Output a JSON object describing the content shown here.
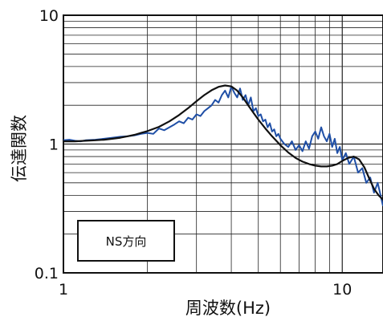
{
  "chart_data": {
    "type": "line",
    "xlabel": "周波数(Hz)",
    "ylabel": "伝達関数",
    "x_scale": "log",
    "y_scale": "log",
    "xlim": [
      1,
      14
    ],
    "ylim": [
      0.1,
      10
    ],
    "grid": true,
    "x_ticks": [
      {
        "value": 1,
        "label": "1"
      },
      {
        "value": 10,
        "label": "10"
      }
    ],
    "y_ticks": [
      {
        "value": 0.1,
        "label": "0.1"
      },
      {
        "value": 1,
        "label": "1"
      },
      {
        "value": 10,
        "label": "10"
      }
    ],
    "legend": {
      "text": "NS方向",
      "placement": "bottom-left"
    },
    "series": [
      {
        "color": "#1f4fa6",
        "x": [
          1.0,
          1.05,
          1.1,
          1.15,
          1.2,
          1.3,
          1.4,
          1.5,
          1.6,
          1.7,
          1.8,
          1.9,
          2.0,
          2.1,
          2.2,
          2.3,
          2.4,
          2.5,
          2.6,
          2.7,
          2.8,
          2.9,
          3.0,
          3.1,
          3.2,
          3.3,
          3.4,
          3.5,
          3.6,
          3.7,
          3.8,
          3.9,
          4.0,
          4.1,
          4.2,
          4.3,
          4.4,
          4.5,
          4.6,
          4.7,
          4.8,
          4.9,
          5.0,
          5.1,
          5.2,
          5.3,
          5.4,
          5.5,
          5.6,
          5.7,
          5.8,
          5.9,
          6.0,
          6.2,
          6.4,
          6.6,
          6.8,
          7.0,
          7.2,
          7.4,
          7.6,
          7.8,
          8.0,
          8.2,
          8.4,
          8.6,
          8.8,
          9.0,
          9.2,
          9.4,
          9.6,
          9.8,
          10.0,
          10.3,
          10.6,
          11.0,
          11.4,
          11.8,
          12.2,
          12.6,
          13.0,
          13.4,
          13.8,
          14.0
        ],
        "y": [
          1.07,
          1.08,
          1.06,
          1.05,
          1.07,
          1.08,
          1.1,
          1.12,
          1.14,
          1.15,
          1.17,
          1.2,
          1.22,
          1.2,
          1.32,
          1.28,
          1.35,
          1.42,
          1.5,
          1.45,
          1.6,
          1.55,
          1.7,
          1.65,
          1.8,
          1.9,
          2.0,
          2.2,
          2.1,
          2.4,
          2.6,
          2.3,
          2.8,
          2.5,
          2.3,
          2.7,
          2.2,
          2.4,
          2.0,
          2.3,
          1.8,
          1.9,
          1.65,
          1.7,
          1.5,
          1.55,
          1.35,
          1.45,
          1.25,
          1.3,
          1.15,
          1.2,
          1.1,
          1.0,
          0.95,
          1.05,
          0.9,
          0.98,
          0.88,
          1.05,
          0.92,
          1.15,
          1.25,
          1.1,
          1.35,
          1.15,
          1.05,
          1.2,
          0.95,
          1.1,
          0.85,
          0.95,
          0.75,
          0.85,
          0.7,
          0.8,
          0.6,
          0.65,
          0.5,
          0.55,
          0.42,
          0.5,
          0.38,
          0.33
        ]
      },
      {
        "color": "#111111",
        "x": [
          1.0,
          1.1,
          1.2,
          1.3,
          1.4,
          1.5,
          1.6,
          1.7,
          1.8,
          1.9,
          2.0,
          2.2,
          2.4,
          2.6,
          2.8,
          3.0,
          3.2,
          3.4,
          3.6,
          3.8,
          4.0,
          4.2,
          4.4,
          4.6,
          4.8,
          5.0,
          5.3,
          5.6,
          6.0,
          6.4,
          6.8,
          7.2,
          7.6,
          8.0,
          8.4,
          8.8,
          9.2,
          9.6,
          10.0,
          10.5,
          11.0,
          11.5,
          12.0,
          12.5,
          13.0,
          13.5,
          14.0
        ],
        "y": [
          1.05,
          1.05,
          1.06,
          1.07,
          1.08,
          1.1,
          1.12,
          1.15,
          1.18,
          1.22,
          1.26,
          1.36,
          1.5,
          1.68,
          1.9,
          2.15,
          2.4,
          2.62,
          2.78,
          2.85,
          2.8,
          2.6,
          2.3,
          2.0,
          1.75,
          1.55,
          1.32,
          1.15,
          0.98,
          0.86,
          0.78,
          0.73,
          0.7,
          0.68,
          0.67,
          0.67,
          0.68,
          0.7,
          0.74,
          0.78,
          0.8,
          0.76,
          0.66,
          0.54,
          0.45,
          0.4,
          0.37
        ]
      }
    ]
  }
}
